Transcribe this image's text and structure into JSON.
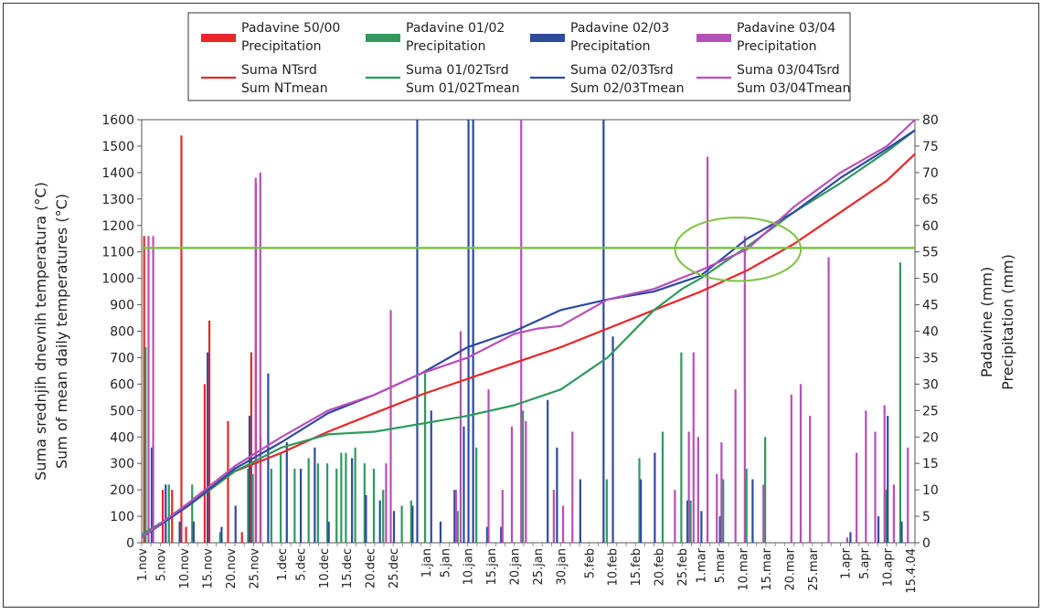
{
  "chart_data": {
    "type": "bar+line",
    "y_left_label_1": "Suma srednjih dnevnih temperatura (°C)",
    "y_left_label_2": "Sum of mean daily temperatures (°C)",
    "y_right_label_1": "Padavine (mm)",
    "y_right_label_2": "Precipitation (mm)",
    "y_left_ticks": [
      "0",
      "100",
      "200",
      "300",
      "400",
      "500",
      "600",
      "700",
      "800",
      "900",
      "1000",
      "1100",
      "1200",
      "1300",
      "1400",
      "1500",
      "1600"
    ],
    "y_right_ticks": [
      "0",
      "5",
      "10",
      "15",
      "20",
      "25",
      "30",
      "35",
      "40",
      "45",
      "50",
      "55",
      "60",
      "65",
      "70",
      "75",
      "80"
    ],
    "ylim_left": [
      0,
      1600
    ],
    "ylim_right": [
      0,
      80
    ],
    "x_tick_labels": [
      "1.nov",
      "5.nov",
      "10.nov",
      "15.nov",
      "20.nov",
      "25.nov",
      "1.dec",
      "5.dec",
      "10.dec",
      "15.dec",
      "20.dec",
      "25.dec",
      "1.jan",
      "5.jan",
      "10.jan",
      "15.jan",
      "20.jan",
      "25.jan",
      "30.jan",
      "5.feb",
      "10.feb",
      "15.feb",
      "20.feb",
      "25.feb",
      "1.mar",
      "5.mar",
      "10.mar",
      "15.mar",
      "20.mar",
      "25.mar",
      "1.apr",
      "5.apr",
      "10.apr",
      "15.4.04"
    ],
    "x_tick_days": [
      0,
      4,
      9,
      14,
      19,
      24,
      30,
      34,
      39,
      44,
      49,
      54,
      61,
      65,
      70,
      75,
      80,
      85,
      90,
      96,
      101,
      106,
      111,
      116,
      120,
      124,
      129,
      134,
      139,
      144,
      151,
      155,
      160,
      165
    ],
    "x_day_range": [
      0,
      166
    ],
    "threshold_value": 1115,
    "threshold_color": "#7dc243",
    "highlight_ellipse": {
      "day_center": 128,
      "value_center": 1110,
      "day_radius": 13.5,
      "value_radius": 120,
      "color": "#7dc243"
    },
    "legend": {
      "bar_items": [
        {
          "line1": "Padavine 50/00",
          "line2": "Precipitation",
          "color": "#e8262a"
        },
        {
          "line1": "Padavine 01/02",
          "line2": "Precipitation",
          "color": "#2e9a5c"
        },
        {
          "line1": "Padavine 02/03",
          "line2": "Precipitation",
          "color": "#2e4aa0"
        },
        {
          "line1": "Padavine 03/04",
          "line2": "Precipitation",
          "color": "#b84fb8"
        }
      ],
      "line_items": [
        {
          "line1": "Suma NTsrd",
          "line2": "Sum NTmean",
          "color": "#e8262a"
        },
        {
          "line1": "Suma 01/02Tsrd",
          "line2": "Sum 01/02Tmean",
          "color": "#2e9a5c"
        },
        {
          "line1": "Suma 02/03Tsrd",
          "line2": "Sum 02/03Tmean",
          "color": "#2e4aa0"
        },
        {
          "line1": "Suma 03/04Tsrd",
          "line2": "Sum 03/04Tmean",
          "color": "#b84fb8"
        }
      ]
    },
    "line_series": [
      {
        "color": "#e8262a",
        "x": [
          0,
          10,
          20,
          30,
          40,
          50,
          60,
          70,
          80,
          90,
          100,
          110,
          120,
          130,
          140,
          150,
          160,
          166
        ],
        "y": [
          20,
          140,
          270,
          340,
          420,
          490,
          560,
          620,
          680,
          740,
          810,
          880,
          950,
          1030,
          1130,
          1250,
          1370,
          1470
        ]
      },
      {
        "color": "#2e9a5c",
        "x": [
          0,
          10,
          20,
          30,
          40,
          50,
          60,
          70,
          80,
          90,
          100,
          110,
          116,
          120,
          125,
          130,
          140,
          150,
          160,
          166
        ],
        "y": [
          30,
          140,
          270,
          360,
          410,
          420,
          450,
          480,
          520,
          580,
          700,
          880,
          960,
          1000,
          1060,
          1120,
          1250,
          1360,
          1480,
          1560
        ]
      },
      {
        "color": "#2e4aa0",
        "x": [
          0,
          10,
          20,
          30,
          40,
          50,
          60,
          70,
          80,
          90,
          100,
          110,
          120,
          130,
          140,
          150,
          160,
          166
        ],
        "y": [
          20,
          140,
          280,
          380,
          490,
          560,
          640,
          740,
          800,
          880,
          920,
          950,
          1010,
          1150,
          1250,
          1380,
          1490,
          1560
        ]
      },
      {
        "color": "#b84fb8",
        "x": [
          0,
          10,
          20,
          30,
          40,
          50,
          60,
          70,
          80,
          85,
          90,
          100,
          110,
          120,
          130,
          140,
          150,
          160,
          166
        ],
        "y": [
          20,
          150,
          290,
          400,
          500,
          560,
          640,
          700,
          790,
          810,
          820,
          920,
          960,
          1030,
          1110,
          1270,
          1400,
          1500,
          1600
        ]
      }
    ],
    "precip_series": [
      {
        "color": "#e8262a",
        "days": [
          1,
          5,
          7,
          9,
          10,
          14,
          15,
          19,
          22,
          24,
          25,
          26
        ],
        "mm": [
          58,
          10,
          10,
          77,
          3,
          30,
          42,
          23,
          2,
          36,
          68,
          20
        ]
      },
      {
        "color": "#2e9a5c",
        "days": [
          1,
          6,
          11,
          17,
          23,
          24,
          28,
          30,
          33,
          36,
          38,
          40,
          42,
          43,
          44,
          46,
          48,
          50,
          52,
          56,
          58,
          61,
          68,
          72,
          82,
          100,
          107,
          112,
          116,
          118,
          125,
          130,
          134,
          160,
          163
        ],
        "mm": [
          37,
          11,
          11,
          2,
          14,
          13,
          14,
          17,
          14,
          16,
          15,
          15,
          14,
          17,
          17,
          18,
          15,
          14,
          10,
          7,
          8,
          32,
          6,
          18,
          25,
          12,
          16,
          21,
          36,
          8,
          12,
          14,
          20,
          10,
          53
        ]
      },
      {
        "color": "#2e4aa0",
        "days": [
          2,
          5,
          8,
          11,
          14,
          17,
          20,
          23,
          27,
          31,
          34,
          37,
          40,
          45,
          48,
          51,
          54,
          58,
          59,
          62,
          64,
          67,
          69,
          70,
          71,
          74,
          77,
          87,
          89,
          94,
          99,
          101,
          107,
          110,
          117,
          120,
          124,
          131,
          152,
          158,
          160,
          163
        ],
        "mm": [
          18,
          11,
          4,
          4,
          36,
          3,
          7,
          24,
          32,
          19,
          14,
          18,
          4,
          16,
          9,
          8,
          6,
          7,
          80,
          25,
          4,
          10,
          22,
          80,
          80,
          3,
          3,
          27,
          18,
          12,
          80,
          39,
          12,
          17,
          8,
          6,
          5,
          12,
          2,
          5,
          24,
          4
        ]
      },
      {
        "color": "#b84fb8",
        "days": [
          1,
          2,
          24,
          25,
          52,
          53,
          67,
          68,
          74,
          77,
          79,
          81,
          82,
          88,
          90,
          92,
          114,
          117,
          118,
          119,
          121,
          123,
          124,
          127,
          129,
          133,
          139,
          141,
          143,
          147,
          151,
          153,
          155,
          157,
          159,
          161,
          164
        ],
        "mm": [
          58,
          58,
          69,
          70,
          15,
          44,
          10,
          40,
          29,
          10,
          22,
          80,
          23,
          10,
          7,
          21,
          10,
          21,
          36,
          20,
          73,
          13,
          19,
          29,
          58,
          11,
          28,
          30,
          24,
          54,
          1,
          17,
          25,
          21,
          26,
          11,
          18
        ]
      }
    ]
  }
}
